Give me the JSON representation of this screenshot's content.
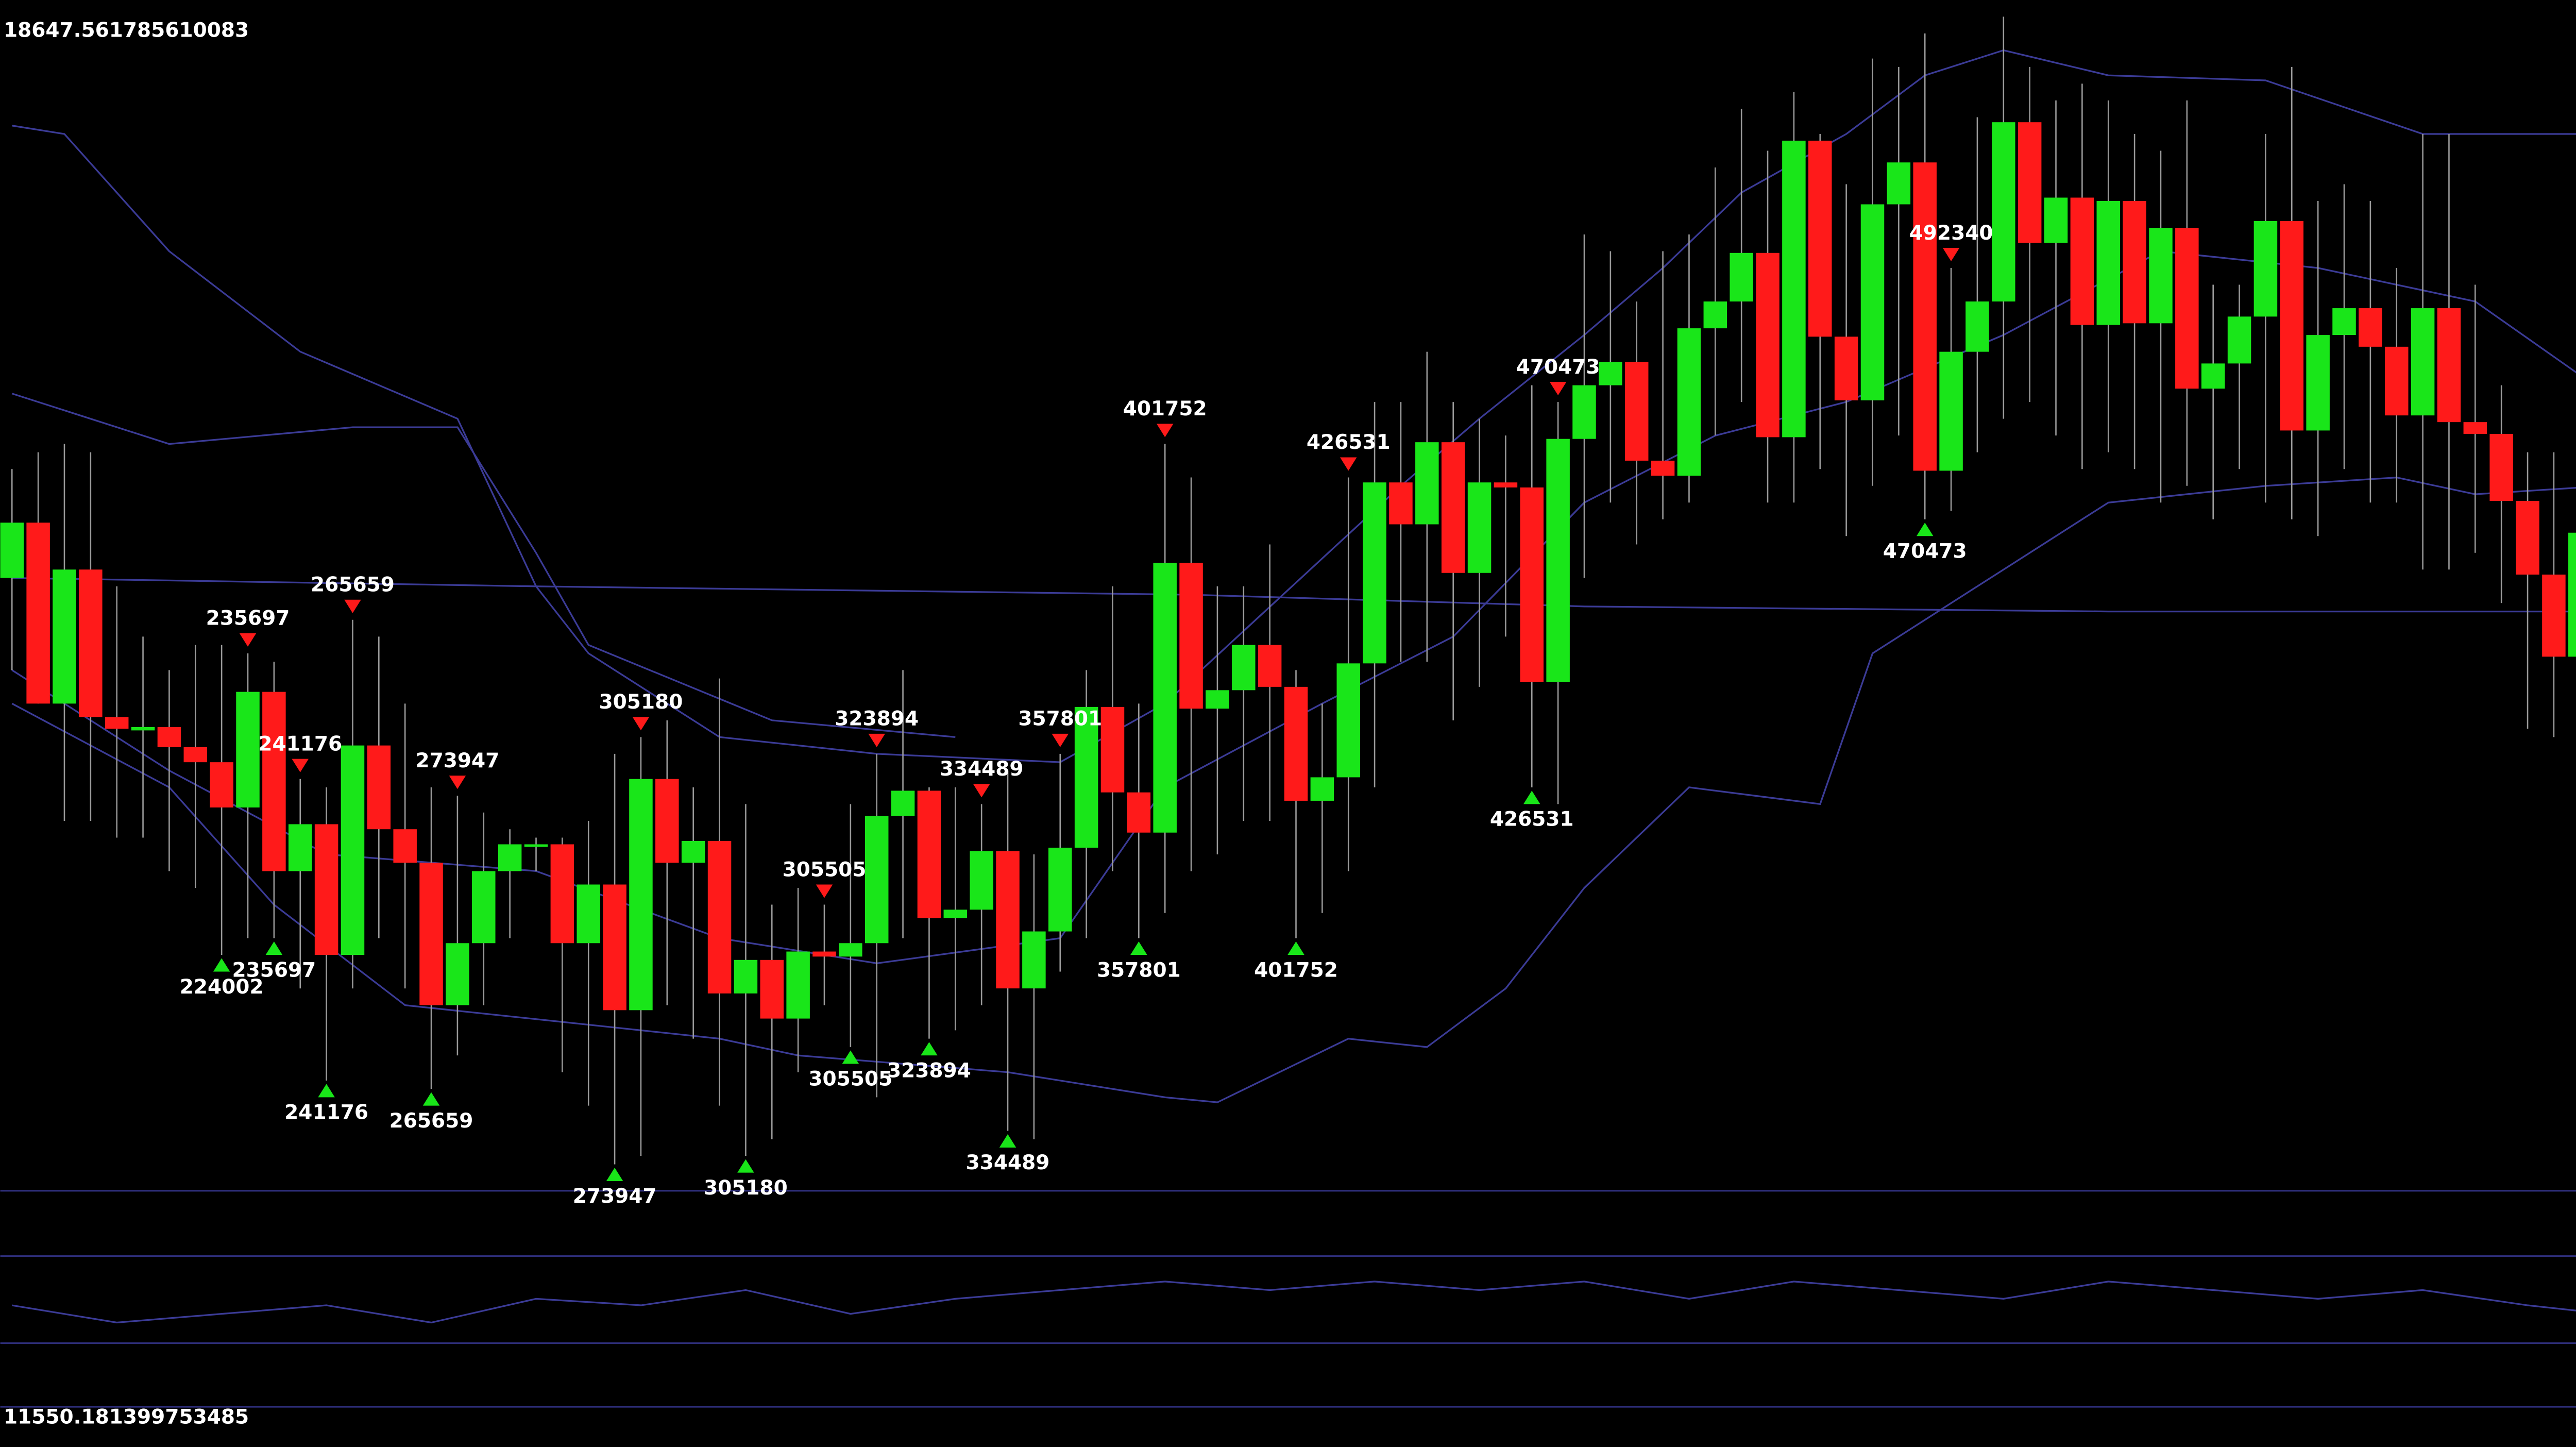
{
  "chart_data": {
    "type": "candlestick",
    "ylim": [
      11550.181399753485,
      18647.561785610083
    ],
    "yticks": [
      11550.181399753485,
      18647.561785610083
    ],
    "up_color": "#19e619",
    "down_color": "#ff1a1a",
    "open": [
      15198,
      15528,
      14448,
      15248,
      14368,
      14288,
      14308,
      14188,
      14098,
      13828,
      14518,
      13448,
      13728,
      12948,
      14198,
      13698,
      13498,
      12648,
      13018,
      13448,
      13598,
      13608,
      13018,
      13368,
      12618,
      13998,
      13498,
      13628,
      12718,
      12918,
      12568,
      12968,
      12938,
      13018,
      13778,
      13928,
      13168,
      13218,
      13568,
      12748,
      13088,
      13588,
      14428,
      13918,
      13678,
      15288,
      14418,
      14528,
      14798,
      14548,
      13868,
      14008,
      14688,
      15768,
      15518,
      16008,
      15228,
      15768,
      15738,
      14578,
      16028,
      16348,
      16488,
      15898,
      15808,
      16688,
      16848,
      17138,
      16038,
      17808,
      16638,
      16258,
      17428,
      17678,
      15838,
      16548,
      16848,
      17918,
      17198,
      17468,
      16708,
      17448,
      16718,
      17288,
      16328,
      16478,
      16758,
      17328,
      16078,
      16648,
      16808,
      16578,
      16168,
      16808,
      16128,
      16058,
      15658,
      15218,
      14728,
      15468
    ],
    "high": [
      15848,
      15948,
      15998,
      15948,
      15148,
      14848,
      14648,
      14798,
      14798,
      14748,
      14698,
      13998,
      13948,
      14948,
      14848,
      14448,
      13948,
      13898,
      13798,
      13698,
      13648,
      13648,
      13748,
      14148,
      14248,
      14348,
      13948,
      14598,
      13848,
      13248,
      13348,
      13248,
      13848,
      14148,
      14648,
      13948,
      13948,
      13848,
      14048,
      13548,
      14148,
      14648,
      15148,
      14448,
      15998,
      15798,
      15148,
      15148,
      15398,
      14648,
      14448,
      15798,
      16248,
      16248,
      16548,
      16248,
      16148,
      16048,
      16348,
      16248,
      17248,
      17148,
      16848,
      17148,
      17248,
      17648,
      17998,
      17748,
      18098,
      17848,
      17548,
      18298,
      18248,
      18448,
      17048,
      17948,
      18548,
      18248,
      18048,
      18148,
      18048,
      17848,
      17748,
      18048,
      16948,
      16948,
      17848,
      18248,
      17448,
      17548,
      17448,
      17048,
      17848,
      17848,
      16948,
      16348,
      15948,
      15948,
      15648,
      15848
    ],
    "low": [
      14648,
      14448,
      13748,
      13748,
      13648,
      13648,
      13448,
      13348,
      12948,
      13048,
      13048,
      12748,
      12198,
      12748,
      13048,
      12748,
      12148,
      12348,
      12648,
      13048,
      13448,
      12248,
      12048,
      11698,
      11748,
      12648,
      12448,
      12048,
      11748,
      11848,
      12248,
      12648,
      12398,
      12098,
      13048,
      12448,
      12498,
      12648,
      11898,
      11848,
      12848,
      13048,
      13448,
      13048,
      13198,
      13448,
      13548,
      13748,
      13748,
      13048,
      13198,
      13448,
      13948,
      14698,
      14698,
      14348,
      14548,
      14848,
      13948,
      13848,
      15198,
      15648,
      15398,
      15548,
      15648,
      16048,
      16248,
      15648,
      15648,
      15848,
      15448,
      15748,
      16048,
      15548,
      15598,
      15948,
      16148,
      16248,
      16048,
      15848,
      15948,
      15848,
      15648,
      15748,
      15548,
      15848,
      15648,
      15548,
      15448,
      15848,
      15648,
      15648,
      15248,
      15248,
      15348,
      15048,
      14298,
      14248,
      14148,
      14048
    ],
    "close": [
      15528,
      14448,
      15248,
      14368,
      14298,
      14308,
      14188,
      14098,
      13828,
      14518,
      13448,
      13728,
      12948,
      14198,
      13698,
      13498,
      12648,
      13018,
      13448,
      13608,
      13608,
      13018,
      13368,
      12618,
      13998,
      13498,
      13628,
      12718,
      12918,
      12568,
      12968,
      12938,
      13018,
      13778,
      13928,
      13168,
      13218,
      13568,
      12748,
      13088,
      13588,
      14428,
      13918,
      13678,
      15288,
      14418,
      14528,
      14798,
      14548,
      13868,
      14008,
      14688,
      15768,
      15518,
      16008,
      15228,
      15768,
      15738,
      14578,
      16028,
      16348,
      16488,
      15898,
      15808,
      16688,
      16848,
      17138,
      16038,
      17808,
      16638,
      16258,
      17428,
      17678,
      15838,
      16548,
      16848,
      17918,
      17198,
      17468,
      16708,
      17448,
      16718,
      17288,
      16328,
      16478,
      16758,
      17328,
      16078,
      16648,
      16808,
      16578,
      16168,
      16808,
      16128,
      16058,
      15658,
      15218,
      14728,
      15468,
      14848
    ],
    "lines": [
      {
        "color": "#3b3b96",
        "x": [
          0,
          2,
          6,
          11,
          17,
          20,
          22,
          27,
          33,
          40,
          44,
          53,
          56,
          60,
          63,
          66,
          70,
          73,
          76,
          80,
          86,
          92,
          99
        ],
        "values": [
          17898,
          17848,
          17148,
          16548,
          16148,
          15148,
          14748,
          14248,
          14148,
          14098,
          14448,
          15748,
          16148,
          16648,
          17048,
          17498,
          17848,
          18198,
          18348,
          18198,
          18168,
          17848,
          17848
        ]
      },
      {
        "color": "#3b3b96",
        "x": [
          0,
          6,
          13,
          17,
          20,
          22,
          29,
          36
        ],
        "values": [
          16298,
          15998,
          16098,
          16098,
          15348,
          14798,
          14348,
          14248
        ]
      },
      {
        "color": "#3b3b96",
        "x": [
          0,
          20,
          45,
          60,
          80,
          99
        ],
        "values": [
          15198,
          15148,
          15098,
          15028,
          14998,
          14998
        ]
      },
      {
        "color": "#3b3b96",
        "x": [
          0,
          6,
          12,
          20,
          27,
          33,
          40,
          44,
          50,
          55,
          60,
          65,
          70,
          76,
          82,
          88,
          94,
          99
        ],
        "values": [
          14648,
          14048,
          13548,
          13448,
          13048,
          12898,
          13048,
          13948,
          14448,
          14848,
          15648,
          16048,
          16248,
          16648,
          17148,
          17048,
          16848,
          16298
        ]
      },
      {
        "color": "#3b3b96",
        "x": [
          0,
          6,
          10,
          15,
          21,
          27,
          30,
          38,
          44,
          46,
          51,
          54,
          57,
          60,
          64,
          69,
          71,
          76,
          80,
          86,
          91,
          94,
          99
        ],
        "values": [
          14448,
          13948,
          13248,
          12648,
          12548,
          12448,
          12348,
          12248,
          12098,
          12068,
          12448,
          12398,
          12748,
          13348,
          13948,
          13848,
          14748,
          15248,
          15648,
          15748,
          15798,
          15698,
          15748
        ]
      }
    ],
    "oscillator": {
      "color": "#3b3b96",
      "ylim": [
        0,
        100
      ],
      "x": [
        0,
        4,
        8,
        12,
        16,
        20,
        24,
        28,
        32,
        36,
        40,
        44,
        48,
        52,
        56,
        60,
        64,
        68,
        72,
        76,
        80,
        84,
        88,
        92,
        96,
        99
      ],
      "values": [
        47,
        39,
        43,
        47,
        39,
        50,
        47,
        54,
        43,
        50,
        54,
        58,
        54,
        58,
        54,
        58,
        50,
        58,
        54,
        50,
        58,
        54,
        50,
        54,
        47,
        43
      ]
    },
    "signals": [
      {
        "candle": 9,
        "direction": "down",
        "label": 235697
      },
      {
        "candle": 13,
        "direction": "down",
        "label": 265659
      },
      {
        "candle": 11,
        "direction": "down",
        "label": 241176
      },
      {
        "candle": 17,
        "direction": "down",
        "label": 273947
      },
      {
        "candle": 24,
        "direction": "down",
        "label": 305180
      },
      {
        "candle": 31,
        "direction": "down",
        "label": 305505
      },
      {
        "candle": 33,
        "direction": "down",
        "label": 323894
      },
      {
        "candle": 37,
        "direction": "down",
        "label": 334489
      },
      {
        "candle": 40,
        "direction": "down",
        "label": 357801
      },
      {
        "candle": 44,
        "direction": "down",
        "label": 401752
      },
      {
        "candle": 51,
        "direction": "down",
        "label": 426531
      },
      {
        "candle": 59,
        "direction": "down",
        "label": 470473
      },
      {
        "candle": 74,
        "direction": "down",
        "label": 492340
      },
      {
        "candle": 8,
        "direction": "up",
        "label": 224002
      },
      {
        "candle": 10,
        "direction": "up",
        "label": 235697
      },
      {
        "candle": 12,
        "direction": "up",
        "label": 241176
      },
      {
        "candle": 16,
        "direction": "up",
        "label": 265659
      },
      {
        "candle": 23,
        "direction": "up",
        "label": 273947
      },
      {
        "candle": 28,
        "direction": "up",
        "label": 305180
      },
      {
        "candle": 32,
        "direction": "up",
        "label": 305505
      },
      {
        "candle": 35,
        "direction": "up",
        "label": 323894
      },
      {
        "candle": 38,
        "direction": "up",
        "label": 334489
      },
      {
        "candle": 43,
        "direction": "up",
        "label": 357801
      },
      {
        "candle": 49,
        "direction": "up",
        "label": 401752
      },
      {
        "candle": 58,
        "direction": "up",
        "label": 426531
      },
      {
        "candle": 73,
        "direction": "up",
        "label": 470473
      }
    ]
  }
}
